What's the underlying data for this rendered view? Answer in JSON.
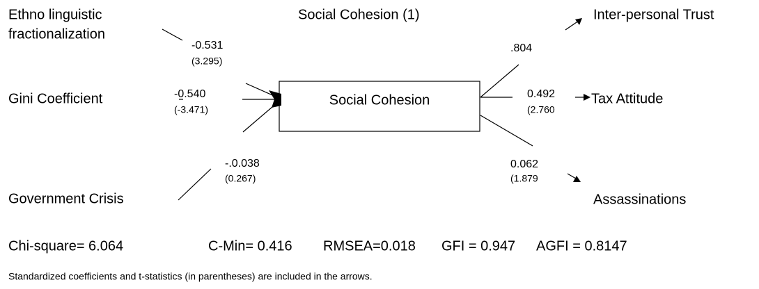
{
  "title": "Social Cohesion (1)",
  "nodes": [
    {
      "label": [
        "Ethno linguistic",
        "fractionalization"
      ]
    },
    {
      "label": "Gini Coefficient"
    },
    {
      "label": "Government Crisis"
    },
    {
      "label": "Social Cohesion"
    },
    {
      "label": "Inter-personal Trust"
    },
    {
      "label": "Tax Attitude"
    },
    {
      "label": "Assassinations"
    }
  ],
  "edges": [
    {
      "coefficient": "-0.531",
      "t_statistic": "(3.295)"
    },
    {
      "coefficient": "-0.540",
      "t_statistic": "(-3.471)"
    },
    {
      "coefficient": "-.0.038",
      "t_statistic": "(0.267)"
    },
    {
      "coefficient": ".804"
    },
    {
      "coefficient": "0.492",
      "t_statistic": "(2.760"
    },
    {
      "coefficient": "0.062",
      "t_statistic": "(1.879"
    }
  ],
  "fit_statistics": [
    "Chi-square= 6.064",
    "C-Min= 0.416",
    "RMSEA=0.018",
    "GFI = 0.947",
    "AGFI = 0.8147"
  ],
  "note": "Standardized coefficients and t-statistics (in parentheses) are included in the arrows."
}
